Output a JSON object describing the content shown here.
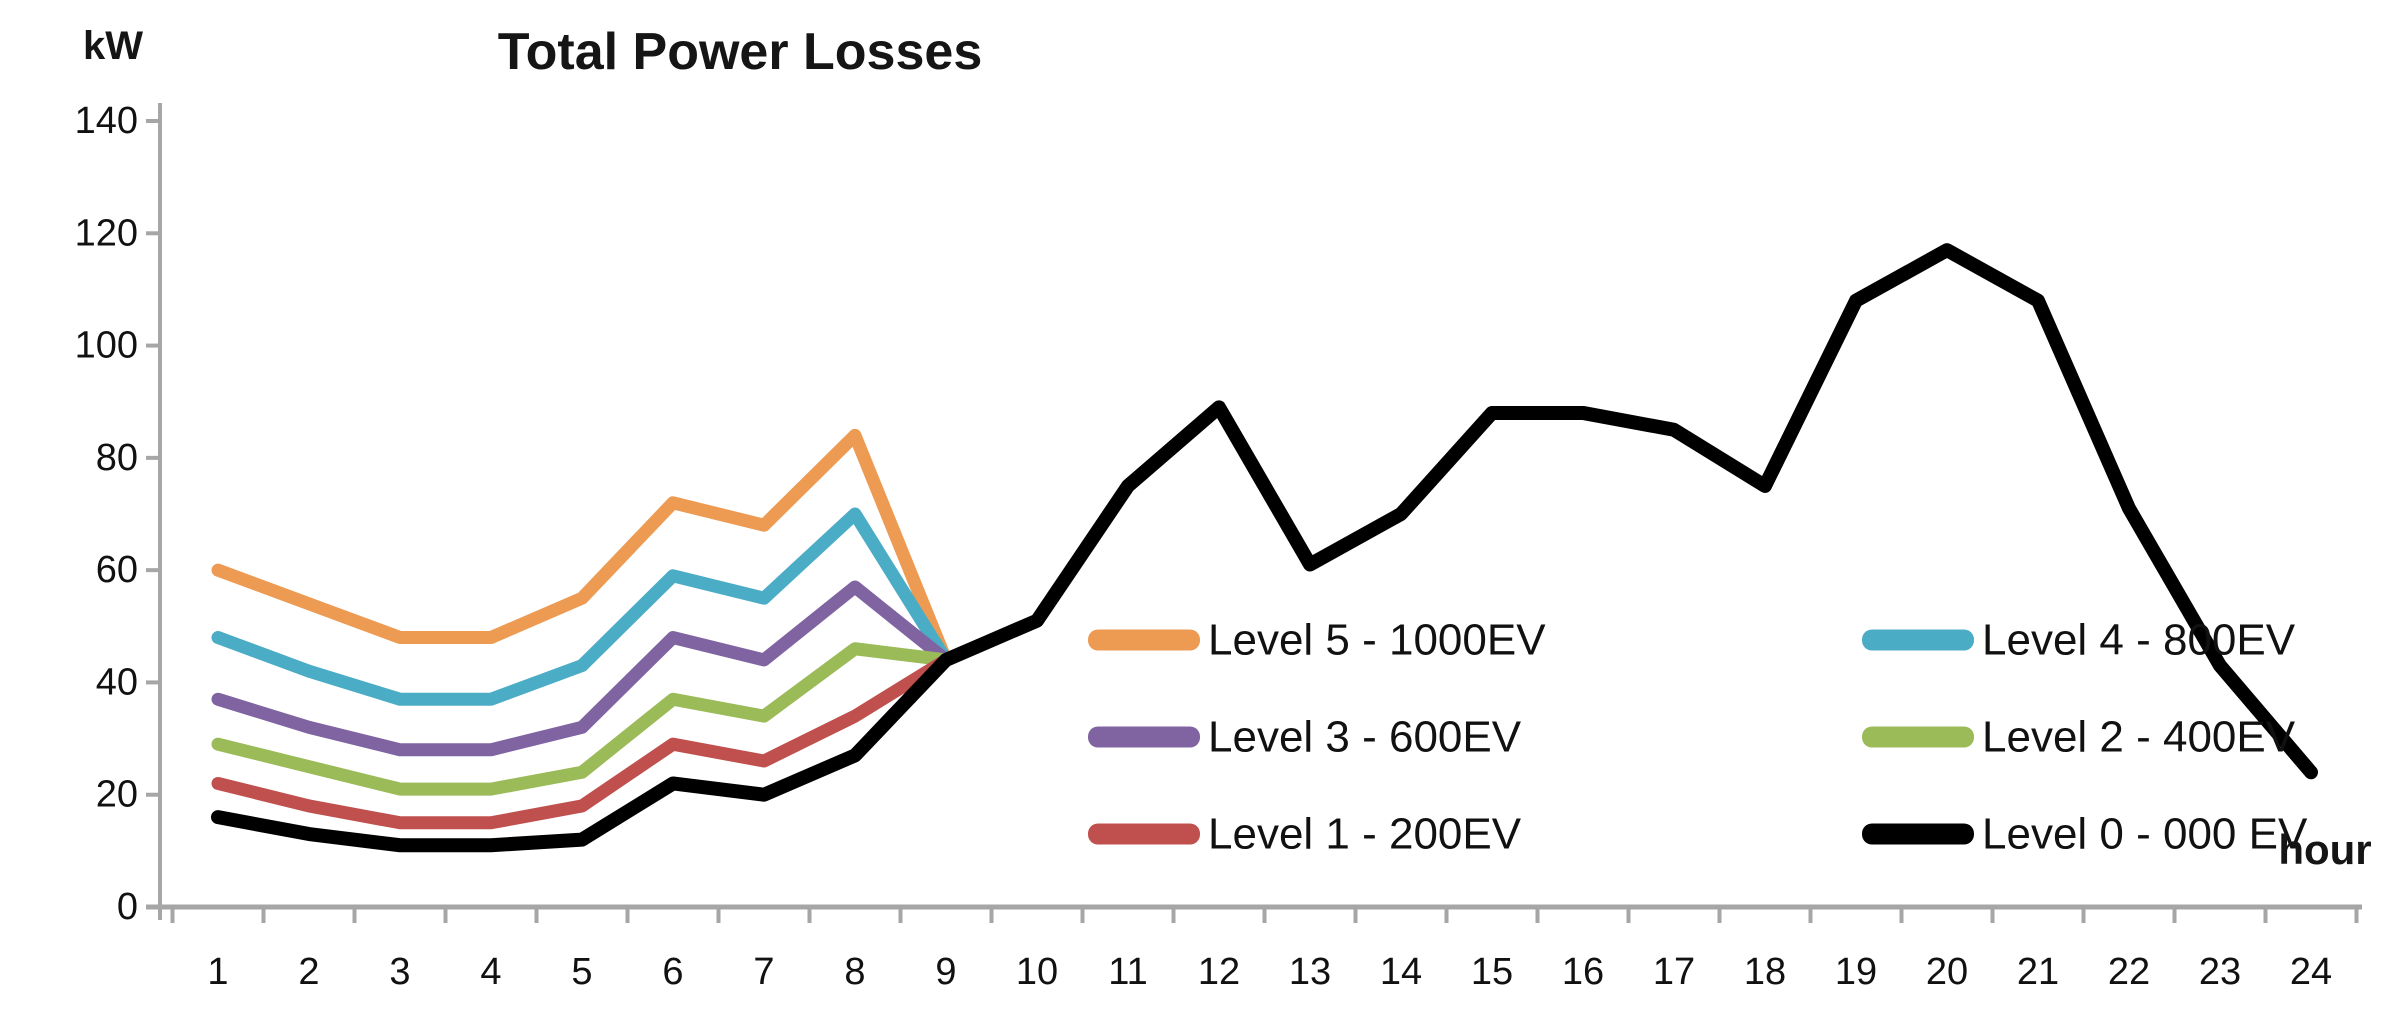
{
  "title": "Total Power Losses",
  "y_axis_unit": "kW",
  "x_axis_unit": "hour",
  "colors": {
    "axis": "#A6A6A6",
    "text": "#111111",
    "background": "#FFFFFF"
  },
  "chart_data": {
    "type": "line",
    "title": "Total Power Losses",
    "xlabel": "hour",
    "ylabel": "kW",
    "x": [
      1,
      2,
      3,
      4,
      5,
      6,
      7,
      8,
      9,
      10,
      11,
      12,
      13,
      14,
      15,
      16,
      17,
      18,
      19,
      20,
      21,
      22,
      23,
      24
    ],
    "ylim": [
      0,
      140
    ],
    "yticks": [
      0,
      20,
      40,
      60,
      80,
      100,
      120,
      140
    ],
    "grid": false,
    "legend_position": "inside-right-middle",
    "series": [
      {
        "name": "Level 5 - 1000EV",
        "color": "#ED9B53",
        "values": [
          60,
          54,
          48,
          48,
          55,
          72,
          68,
          84,
          44
        ]
      },
      {
        "name": "Level 4 - 800EV",
        "color": "#4BACC6",
        "values": [
          48,
          42,
          37,
          37,
          43,
          59,
          55,
          70,
          44
        ]
      },
      {
        "name": "Level 3 - 600EV",
        "color": "#8064A2",
        "values": [
          37,
          32,
          28,
          28,
          32,
          48,
          44,
          57,
          44
        ]
      },
      {
        "name": "Level 2 - 400EV",
        "color": "#9BBB59",
        "values": [
          29,
          25,
          21,
          21,
          24,
          37,
          34,
          46,
          44
        ]
      },
      {
        "name": "Level 1 - 200EV",
        "color": "#C0504D",
        "values": [
          22,
          18,
          15,
          15,
          18,
          29,
          26,
          34,
          44
        ]
      },
      {
        "name": "Level 0 - 000 EV",
        "color": "#000000",
        "values": [
          16,
          13,
          11,
          11,
          12,
          22,
          20,
          27,
          44,
          51,
          75,
          89,
          61,
          70,
          88,
          88,
          85,
          75,
          108,
          117,
          108,
          71,
          43,
          24
        ]
      }
    ]
  },
  "legend": {
    "items": [
      {
        "label": "Level 5 - 1000EV",
        "color": "#ED9B53"
      },
      {
        "label": "Level 4 - 800EV",
        "color": "#4BACC6"
      },
      {
        "label": "Level 3 - 600EV",
        "color": "#8064A2"
      },
      {
        "label": "Level 2 - 400EV",
        "color": "#9BBB59"
      },
      {
        "label": "Level 1 - 200EV",
        "color": "#C0504D"
      },
      {
        "label": "Level 0 - 000 EV",
        "color": "#000000"
      }
    ]
  }
}
